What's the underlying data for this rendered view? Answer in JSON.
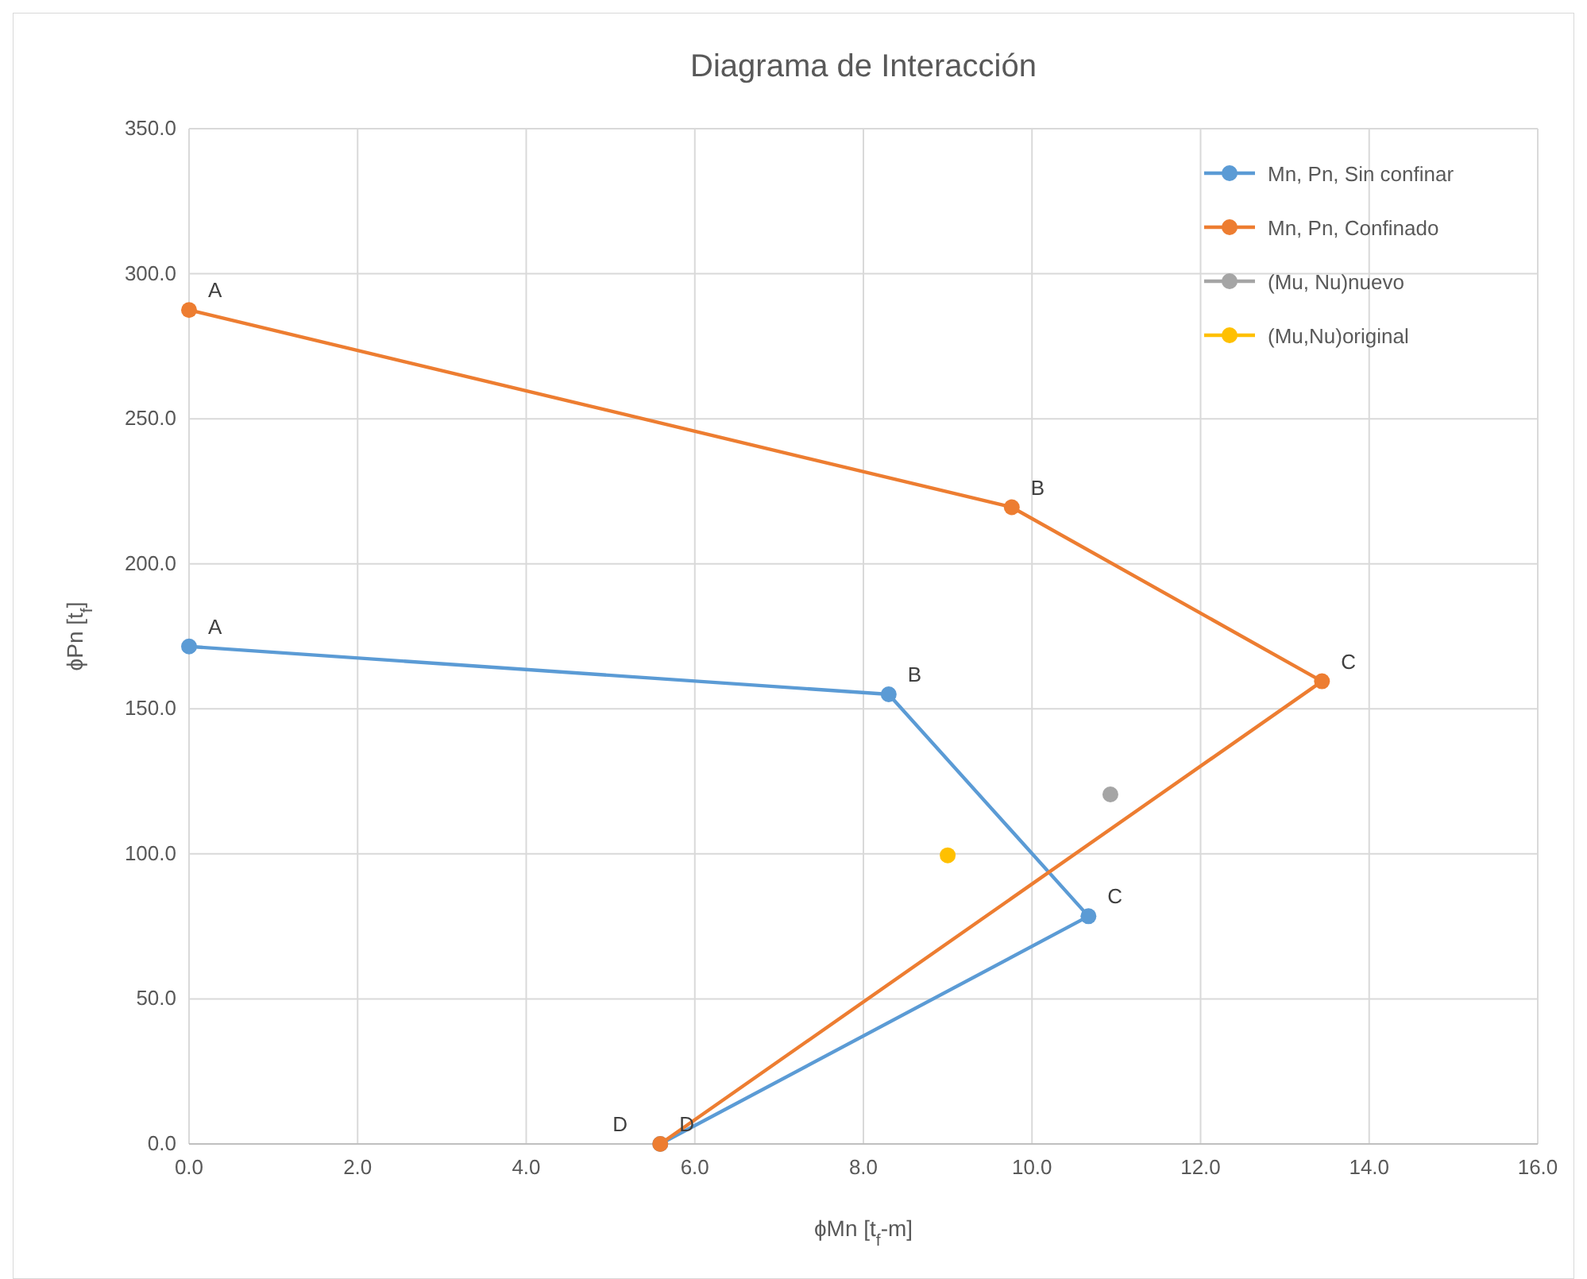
{
  "chart_data": {
    "type": "line",
    "title": "Diagrama de Interacción",
    "xlabel": "ϕMn [t$_{f}$-m]",
    "ylabel": "ϕPn [t$_{f}$]",
    "xlim": [
      0,
      16
    ],
    "ylim": [
      0,
      350
    ],
    "xticks": [
      {
        "value": 0,
        "label": "0.0"
      },
      {
        "value": 2,
        "label": "2.0"
      },
      {
        "value": 4,
        "label": "4.0"
      },
      {
        "value": 6,
        "label": "6.0"
      },
      {
        "value": 8,
        "label": "8.0"
      },
      {
        "value": 10,
        "label": "10.0"
      },
      {
        "value": 12,
        "label": "12.0"
      },
      {
        "value": 14,
        "label": "14.0"
      },
      {
        "value": 16,
        "label": "16.0"
      }
    ],
    "yticks": [
      {
        "value": 0,
        "label": "0.0"
      },
      {
        "value": 50,
        "label": "50.0"
      },
      {
        "value": 100,
        "label": "100.0"
      },
      {
        "value": 150,
        "label": "150.0"
      },
      {
        "value": 200,
        "label": "200.0"
      },
      {
        "value": 250,
        "label": "250.0"
      },
      {
        "value": 300,
        "label": "300.0"
      },
      {
        "value": 350,
        "label": "350.0"
      }
    ],
    "grid": true,
    "legend": "top right",
    "marker": "circle",
    "series": [
      {
        "name": "Mn, Pn, Sin confinar",
        "color": "#5b9bd5",
        "x": [
          0,
          8.3,
          10.67,
          5.59
        ],
        "values": [
          171.5,
          155,
          78.5,
          0
        ]
      },
      {
        "name": "Mn, Pn, Confinado",
        "color": "#ed7d31",
        "x": [
          0,
          9.76,
          13.44,
          5.59
        ],
        "values": [
          287.5,
          219.5,
          159.5,
          0
        ]
      },
      {
        "name": "(Mu, Nu)nuevo",
        "type": "scatter",
        "color": "#a5a5a5",
        "x": [
          10.93
        ],
        "values": [
          120.5
        ]
      },
      {
        "name": "(Mu,Nu)original",
        "type": "scatter",
        "color": "#ffc000",
        "x": [
          9.0
        ],
        "values": [
          99.5
        ]
      }
    ],
    "annotations": [
      {
        "text": "A",
        "x": 0,
        "y": 287.5
      },
      {
        "text": "B",
        "x": 9.76,
        "y": 219.5
      },
      {
        "text": "C",
        "x": 13.44,
        "y": 159.5
      },
      {
        "text": "D",
        "x": 5.59,
        "y": 0
      },
      {
        "text": "A",
        "x": 0,
        "y": 171.5
      },
      {
        "text": "B",
        "x": 8.3,
        "y": 155
      },
      {
        "text": "C",
        "x": 10.67,
        "y": 78.5
      },
      {
        "text": "D",
        "x": 5.59,
        "y": 0
      }
    ]
  }
}
